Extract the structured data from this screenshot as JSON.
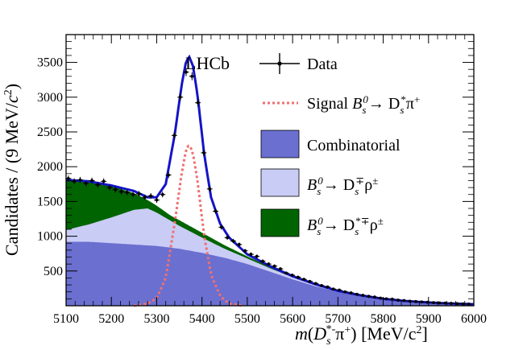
{
  "chart_data": {
    "type": "area",
    "title": "",
    "experiment_label": "LHCb",
    "xlabel": {
      "func": "m(D",
      "sub": "s",
      "sup": "*-",
      "rest": "π",
      "rest_sup": "+",
      "close": ") [MeV/c",
      "power": "2",
      "end": "]"
    },
    "ylabel": {
      "main": "Candidates / (9 MeV/",
      "c": "c",
      "power": "2",
      "end": ")"
    },
    "xlim": [
      5100,
      6000
    ],
    "ylim": [
      0,
      3900
    ],
    "x_ticks": [
      5100,
      5200,
      5300,
      5400,
      5500,
      5600,
      5700,
      5800,
      5900,
      6000
    ],
    "y_ticks": [
      500,
      1000,
      1500,
      2000,
      2500,
      3000,
      3500
    ],
    "x_tick_labels": [
      "5100",
      "5200",
      "5300",
      "5400",
      "5500",
      "5600",
      "5700",
      "5800",
      "5900",
      "6000"
    ],
    "y_tick_labels": [
      "500",
      "1000",
      "1500",
      "2000",
      "2500",
      "3000",
      "3500"
    ],
    "grid": false,
    "legend_position": "top-right",
    "legend": [
      {
        "key": "data",
        "label": "Data"
      },
      {
        "key": "signal",
        "label": "Signal B",
        "sub": "s",
        "sup": "0",
        "arrow": "→ D",
        "sub2": "s",
        "sup2": "*",
        "rest": "π",
        "rest_sup": "+"
      },
      {
        "key": "comb",
        "label": "Combinatorial"
      },
      {
        "key": "rho",
        "label": "B",
        "sub": "s",
        "sup": "0",
        "arrow": "→ D",
        "sub2": "s",
        "sup2": "∓",
        "rest": "ρ",
        "rest_sup": "±"
      },
      {
        "key": "starrho",
        "label": "B",
        "sub": "s",
        "sup": "0",
        "arrow": "→ D",
        "sub2": "s",
        "sup2": "*∓",
        "rest": "ρ",
        "rest_sup": "±"
      }
    ],
    "colors": {
      "comb": "#6b6fd0",
      "rho": "#c9ccf5",
      "starrho": "#006400",
      "total": "#1414c8",
      "signal": "#f07070",
      "data": "#000000"
    },
    "series": [
      {
        "name": "Combinatorial",
        "x": [
          5100,
          5150,
          5200,
          5250,
          5300,
          5350,
          5400,
          5450,
          5500,
          5550,
          5600,
          5650,
          5700,
          5750,
          5800,
          5850,
          5900,
          5950,
          6000
        ],
        "values": [
          920,
          920,
          900,
          880,
          860,
          820,
          760,
          690,
          600,
          490,
          380,
          280,
          200,
          140,
          95,
          65,
          45,
          30,
          20
        ]
      },
      {
        "name": "Bs0 -> Ds rho (cumulative)",
        "x": [
          5100,
          5150,
          5200,
          5250,
          5280,
          5300,
          5350,
          5400,
          5450,
          5500,
          5550,
          5600,
          5650,
          5700,
          5750,
          5800,
          5850,
          5900,
          5950,
          6000
        ],
        "values": [
          1090,
          1170,
          1270,
          1380,
          1400,
          1340,
          1150,
          980,
          820,
          680,
          540,
          410,
          300,
          210,
          145,
          98,
          66,
          46,
          31,
          21
        ]
      },
      {
        "name": "Bs0 -> Ds* rho (cumulative)",
        "x": [
          5100,
          5150,
          5200,
          5250,
          5280,
          5300,
          5330,
          5350,
          5400,
          5450,
          5500,
          5550,
          5600,
          5650,
          5700,
          5750,
          5800,
          5850,
          5900,
          5950,
          6000
        ],
        "values": [
          1800,
          1780,
          1720,
          1620,
          1520,
          1440,
          1300,
          1230,
          1050,
          870,
          710,
          560,
          420,
          305,
          212,
          146,
          99,
          67,
          46,
          31,
          21
        ]
      },
      {
        "name": "Signal",
        "x": [
          5250,
          5280,
          5300,
          5320,
          5340,
          5355,
          5365,
          5372,
          5380,
          5390,
          5405,
          5420,
          5440,
          5460,
          5490
        ],
        "values": [
          0,
          30,
          110,
          400,
          1200,
          1900,
          2250,
          2320,
          2200,
          1800,
          1000,
          450,
          140,
          30,
          0
        ]
      },
      {
        "name": "Total fit",
        "x": [
          5100,
          5150,
          5200,
          5250,
          5280,
          5300,
          5320,
          5340,
          5355,
          5365,
          5372,
          5380,
          5390,
          5405,
          5420,
          5440,
          5460,
          5500,
          5550,
          5600,
          5650,
          5700,
          5750,
          5800,
          5850,
          5900,
          5950,
          6000
        ],
        "values": [
          1810,
          1790,
          1730,
          1650,
          1560,
          1560,
          1750,
          2470,
          3170,
          3520,
          3580,
          3450,
          3040,
          2170,
          1560,
          1180,
          980,
          740,
          570,
          425,
          310,
          215,
          150,
          100,
          68,
          47,
          32,
          22
        ]
      }
    ],
    "data_points": {
      "x": [
        5105,
        5118,
        5131,
        5144,
        5157,
        5170,
        5183,
        5196,
        5209,
        5222,
        5235,
        5248,
        5261,
        5274,
        5287,
        5300,
        5313,
        5326,
        5339,
        5352,
        5365,
        5378,
        5391,
        5404,
        5417,
        5430,
        5443,
        5456,
        5469,
        5482,
        5495,
        5508,
        5521,
        5534,
        5547,
        5560,
        5573,
        5586,
        5599,
        5612,
        5625,
        5638,
        5651,
        5664,
        5677,
        5690,
        5703,
        5716,
        5729,
        5742,
        5755,
        5768,
        5781,
        5794,
        5807,
        5820,
        5833,
        5846,
        5859,
        5872,
        5885,
        5898,
        5911,
        5924,
        5937,
        5950,
        5963,
        5976,
        5989
      ],
      "values": [
        1830,
        1790,
        1810,
        1760,
        1800,
        1740,
        1790,
        1700,
        1670,
        1640,
        1630,
        1600,
        1610,
        1560,
        1580,
        1520,
        1600,
        1880,
        2450,
        3000,
        3360,
        3300,
        2920,
        2200,
        1680,
        1360,
        1130,
        980,
        930,
        880,
        790,
        740,
        710,
        640,
        600,
        570,
        530,
        470,
        440,
        410,
        380,
        350,
        320,
        290,
        270,
        240,
        225,
        200,
        185,
        165,
        150,
        135,
        125,
        110,
        100,
        95,
        80,
        75,
        65,
        60,
        55,
        50,
        45,
        40,
        38,
        35,
        30,
        27,
        25
      ]
    }
  }
}
